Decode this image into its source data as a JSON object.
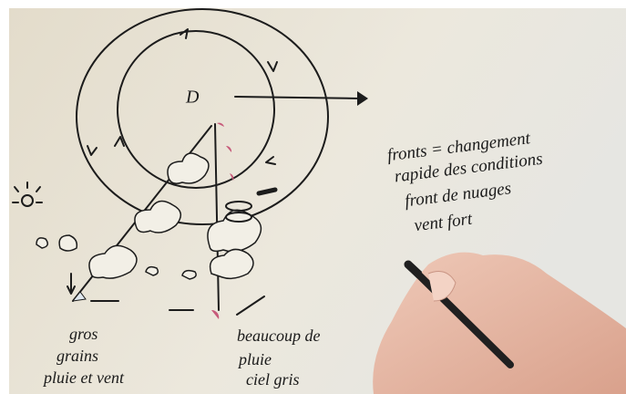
{
  "diagram": {
    "center_label": "D",
    "notes": [
      "fronts = changement",
      "rapide des conditions",
      "front de nuages",
      "vent fort"
    ],
    "left_labels": [
      "gros",
      "grains",
      "pluie et vent"
    ],
    "right_labels": [
      "beaucoup de",
      "pluie",
      "ciel gris"
    ]
  }
}
